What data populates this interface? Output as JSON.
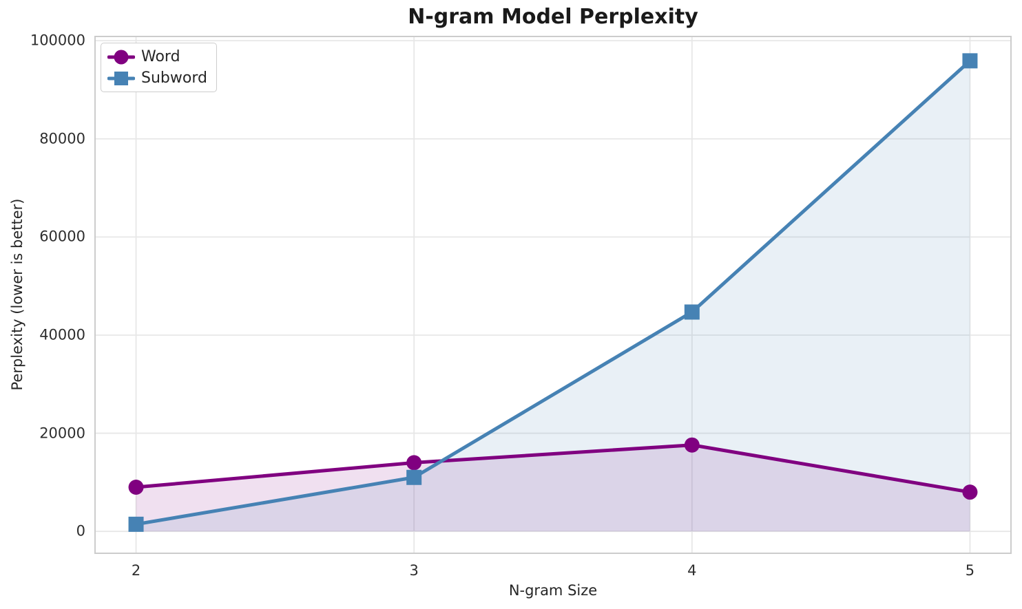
{
  "chart_data": {
    "type": "line",
    "title": "N-gram Model Perplexity",
    "xlabel": "N-gram Size",
    "ylabel": "Perplexity (lower is better)",
    "x": [
      2,
      3,
      4,
      5
    ],
    "series": [
      {
        "name": "Word",
        "marker": "circle",
        "color": "#800080",
        "values": [
          9000,
          14000,
          17600,
          8000
        ]
      },
      {
        "name": "Subword",
        "marker": "square",
        "color": "#4682B4",
        "values": [
          1450,
          11000,
          44700,
          95900
        ]
      }
    ],
    "xtick_values": [
      2,
      3,
      4,
      5
    ],
    "xtick_labels": [
      "2",
      "3",
      "4",
      "5"
    ],
    "ytick_values": [
      0,
      20000,
      40000,
      60000,
      80000,
      100000
    ],
    "ytick_labels": [
      "0",
      "20000",
      "40000",
      "60000",
      "80000",
      "100000"
    ],
    "xlim": [
      1.85,
      5.15
    ],
    "ylim": [
      -4600,
      101000
    ],
    "grid": true,
    "fill_to_zero": true,
    "fill_opacity": 0.12,
    "line_width": 5,
    "marker_size": 22,
    "legend_position": "upper-left"
  },
  "colors": {
    "background": "#ffffff",
    "grid": "#e7e7e7",
    "spine": "#cccccc",
    "tick_text": "#2e2e2e",
    "label_text": "#262626",
    "title_text": "#1a1a1a",
    "legend_border": "#cccccc",
    "legend_bg": "#ffffff"
  }
}
